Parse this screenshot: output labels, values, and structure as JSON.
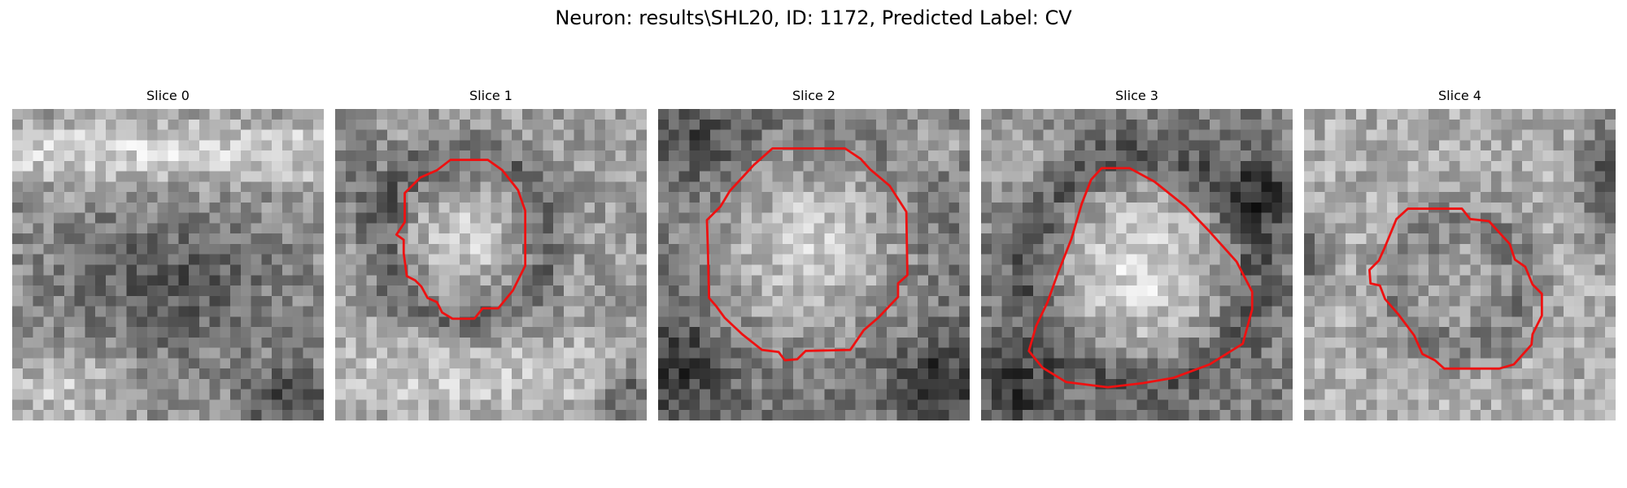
{
  "figure": {
    "title": "Neuron: results\\SHL20, ID: 1172, Predicted Label: CV",
    "contour_color": "#ee1111"
  },
  "panels": [
    {
      "title": "Slice 0",
      "has_contour": false
    },
    {
      "title": "Slice 1",
      "has_contour": true
    },
    {
      "title": "Slice 2",
      "has_contour": true
    },
    {
      "title": "Slice 3",
      "has_contour": true
    },
    {
      "title": "Slice 4",
      "has_contour": true
    }
  ]
}
